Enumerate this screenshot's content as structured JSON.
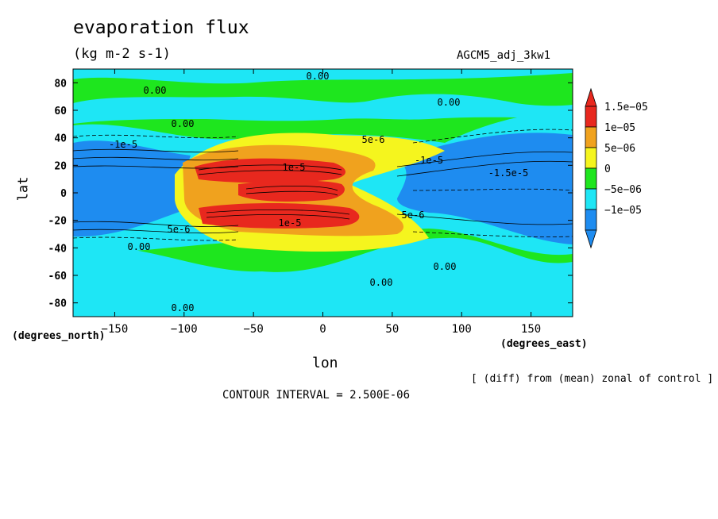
{
  "header": {
    "title": "evaporation flux",
    "units": "(kg m-2 s-1)",
    "experiment": "AGCM5_adj_3kw1"
  },
  "axes": {
    "ylabel": "lat",
    "xlabel": "lon",
    "ydeg": "(degrees_north)",
    "xdeg": "(degrees_east)"
  },
  "footer": {
    "note": "[ (diff) from (mean) zonal of control ]",
    "contour_interval": "CONTOUR INTERVAL = 2.500E-06"
  },
  "colors": {
    "red": "#e8281e",
    "orange": "#f0a21e",
    "yellow": "#f5f51e",
    "green": "#1ee61e",
    "cyan": "#1ee6f5",
    "blue": "#1e8cf0"
  },
  "chart_data": {
    "type": "heatmap",
    "title": "evaporation flux",
    "xlabel": "lon",
    "ylabel": "lat",
    "xlim": [
      -180,
      180
    ],
    "ylim": [
      -90,
      90
    ],
    "xticks": [
      -150,
      -100,
      -50,
      0,
      50,
      100,
      150
    ],
    "yticks": [
      -80,
      -60,
      -40,
      -20,
      0,
      20,
      40,
      60,
      80
    ],
    "xtick_labels": [
      "-150",
      "-100",
      "-50",
      "0",
      "50",
      "100",
      "150"
    ],
    "ytick_labels": [
      "-80",
      "-60",
      "-40",
      "-20",
      "0",
      "20",
      "40",
      "60",
      "80"
    ],
    "colorbar": {
      "labels": [
        "1.5e-05",
        "1e-05",
        "5e-06",
        "0",
        "-5e-06",
        "-1e-05"
      ],
      "levels": [
        1.5e-05,
        1e-05,
        5e-06,
        0,
        -5e-06,
        -1e-05
      ],
      "colors": [
        "#e8281e",
        "#f0a21e",
        "#f5f51e",
        "#1ee61e",
        "#1ee6f5",
        "#1e8cf0"
      ]
    },
    "contour_labels": [
      "0.00",
      "0.00",
      "0.00",
      "0.00",
      "0.00",
      "0.00",
      "0.00",
      "0.00",
      "5e-6",
      "5e-6",
      "5e-6",
      "-1e-5",
      "-1e-5",
      "-1.5e-5",
      "1e-5",
      "1e-5"
    ],
    "regions": [
      {
        "level": -5e-06,
        "lon": [
          -180,
          180
        ],
        "lat": [
          -45,
          50
        ]
      },
      {
        "level": 0,
        "lon": [
          -170,
          180
        ],
        "lat": [
          58,
          78
        ]
      },
      {
        "level": -1e-05,
        "lon": [
          -180,
          -90
        ],
        "lat": [
          -30,
          35
        ]
      },
      {
        "level": -1e-05,
        "lon": [
          80,
          180
        ],
        "lat": [
          -35,
          35
        ]
      },
      {
        "level": 5e-06,
        "lon": [
          -110,
          75
        ],
        "lat": [
          -40,
          40
        ]
      },
      {
        "level": 1e-05,
        "lon": [
          -100,
          40
        ],
        "lat": [
          -30,
          30
        ]
      },
      {
        "level": 1.5e-05,
        "lon": [
          -90,
          0
        ],
        "lat": [
          -25,
          25
        ]
      }
    ],
    "grid": false
  }
}
